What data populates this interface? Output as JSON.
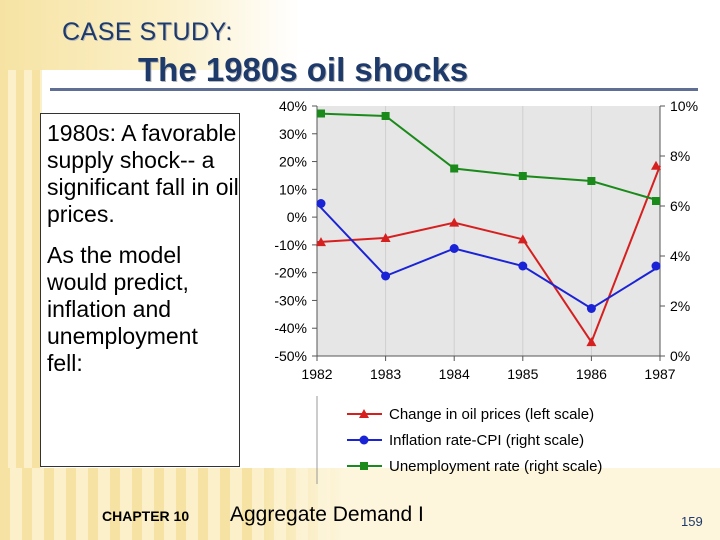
{
  "slide": {
    "subtitle": "CASE STUDY:",
    "title": "The 1980s oil shocks",
    "body_paragraphs": [
      "1980s: A favorable supply shock-- a significant fall in oil prices.",
      "As the model would predict, inflation and unemployment fell:"
    ],
    "footer": {
      "chapter": "CHAPTER 10",
      "course": "Aggregate Demand I",
      "page": "159"
    }
  },
  "chart_data": {
    "type": "line",
    "x": [
      1982,
      1983,
      1984,
      1985,
      1986,
      1987
    ],
    "x_tick_labels": [
      "1982",
      "1983",
      "1984",
      "1985",
      "1986",
      "1987"
    ],
    "left_axis": {
      "ylim": [
        -50,
        40
      ],
      "ticks": [
        "40%",
        "30%",
        "20%",
        "10%",
        "0%",
        "-10%",
        "-20%",
        "-30%",
        "-40%",
        "-50%"
      ]
    },
    "right_axis": {
      "ylim": [
        0,
        10
      ],
      "ticks": [
        "10%",
        "8%",
        "6%",
        "4%",
        "2%",
        "0%"
      ]
    },
    "series": [
      {
        "name": "Change in oil prices (left scale)",
        "axis": "left",
        "color": "#d62020",
        "marker": "triangle",
        "values": [
          -9,
          -7.5,
          -2,
          -8,
          -45,
          18.5
        ]
      },
      {
        "name": "Inflation rate-CPI (right scale)",
        "axis": "right",
        "color": "#1a23d6",
        "marker": "circle",
        "values": [
          6.1,
          3.2,
          4.3,
          3.6,
          1.9,
          3.6
        ]
      },
      {
        "name": "Unemployment rate (right scale)",
        "axis": "right",
        "color": "#1a8a1a",
        "marker": "square",
        "values": [
          9.7,
          9.6,
          7.5,
          7.2,
          7.0,
          6.2
        ]
      }
    ],
    "legend": [
      "Change in oil prices (left scale)",
      "Inflation rate-CPI (right scale)",
      "Unemployment rate (right scale)"
    ],
    "legend_placement": "bottom",
    "background": "#e6e6e6"
  }
}
